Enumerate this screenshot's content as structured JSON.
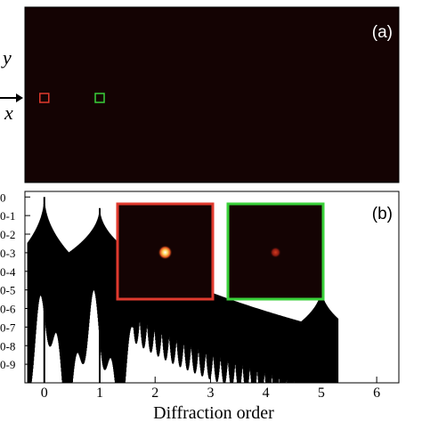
{
  "chart_data": [
    {
      "panel": "a",
      "type": "heatmap",
      "panel_label": "(a)",
      "background_color": "#140303",
      "axis_labels": {
        "x": "x",
        "y": "y"
      },
      "markers": [
        {
          "diffraction_order": 0,
          "color": "#e03a2e"
        },
        {
          "diffraction_order": 1,
          "color": "#3ad13a"
        }
      ]
    },
    {
      "panel": "b",
      "type": "line",
      "panel_label": "(b)",
      "xlabel": "Diffraction order",
      "xlim": [
        -0.35,
        6.4
      ],
      "x_ticks": [
        "0",
        "1",
        "2",
        "3",
        "4",
        "5",
        "6"
      ],
      "y_scale": "log",
      "y_tick_labels": [
        "0",
        "0-1",
        "0-2",
        "0-3",
        "0-4",
        "0-5",
        "0-6",
        "0-7",
        "0-8",
        "0-9"
      ],
      "ylim_exponent": [
        -10,
        0.3
      ],
      "peaks": [
        {
          "x": 0,
          "log10_y": 0
        },
        {
          "x": 1,
          "log10_y": -0.6
        },
        {
          "x": 5,
          "log10_y": -4.9
        }
      ],
      "series_color": "#000000",
      "insets": [
        {
          "border_color": "#e03a2e",
          "spot_color": "#ffd35a",
          "spot_brightness": 1.0
        },
        {
          "border_color": "#3ad13a",
          "spot_color": "#b41e10",
          "spot_brightness": 0.55
        }
      ]
    }
  ]
}
